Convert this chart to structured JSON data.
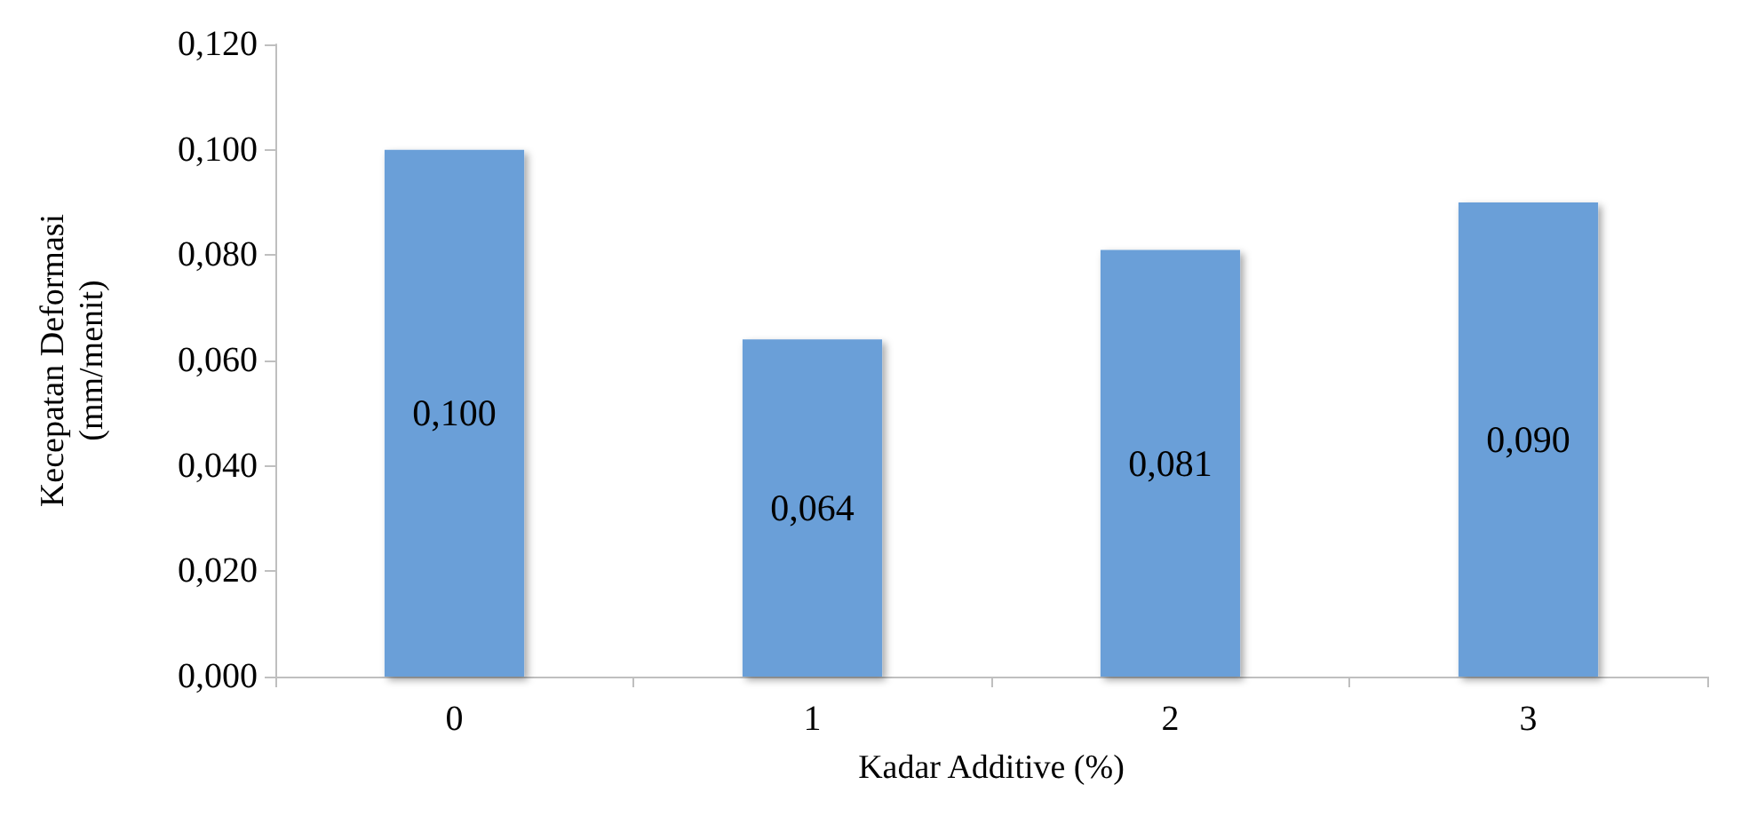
{
  "chart_data": {
    "type": "bar",
    "xlabel": "Kadar Additive (%)",
    "ylabel": "Kecepatan Deformasi\n(mm/menit)",
    "categories": [
      "0",
      "1",
      "2",
      "3"
    ],
    "values": [
      0.1,
      0.064,
      0.081,
      0.09
    ],
    "value_labels": [
      "0,100",
      "0,064",
      "0,081",
      "0,090"
    ],
    "color": "#6a9fd8",
    "ylim": [
      0,
      0.12
    ],
    "yticks": [
      {
        "value": 0,
        "label": "0,000"
      },
      {
        "value": 0.02,
        "label": "0,020"
      },
      {
        "value": 0.04,
        "label": "0,040"
      },
      {
        "value": 0.06,
        "label": "0,060"
      },
      {
        "value": 0.08,
        "label": "0,080"
      },
      {
        "value": 0.1,
        "label": "0,100"
      },
      {
        "value": 0.12,
        "label": "0,120"
      }
    ],
    "grid": false
  }
}
